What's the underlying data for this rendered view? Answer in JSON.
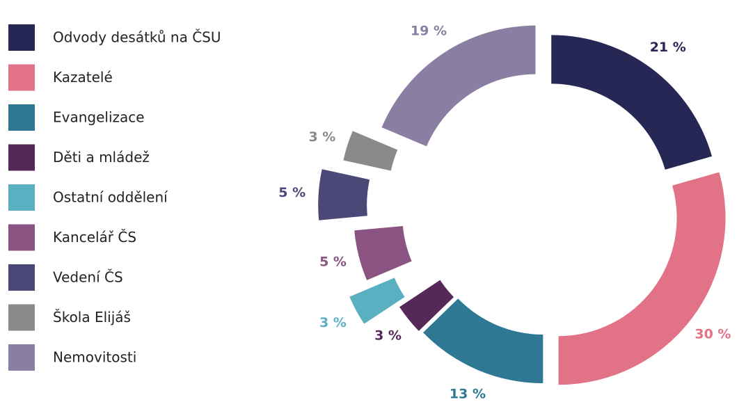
{
  "chart_data": {
    "type": "donut",
    "categories": [
      "Odvody desátků na ČSU",
      "Kazatelé",
      "Evangelizace",
      "Děti a mládež",
      "Ostatní oddělení",
      "Kancelář ČS",
      "Vedení ČS",
      "Škola Elijáš",
      "Nemovitosti"
    ],
    "values": [
      21,
      30,
      13,
      3,
      3,
      5,
      5,
      3,
      19
    ],
    "value_labels": [
      "21 %",
      "30 %",
      "13 %",
      "3 %",
      "3 %",
      "5 %",
      "5 %",
      "3 %",
      "19 %"
    ],
    "colors": [
      "#262755",
      "#e27285",
      "#2e7894",
      "#56285a",
      "#5aafc1",
      "#8a5381",
      "#4a4877",
      "#8a8a8a",
      "#8a7ea3"
    ],
    "legend": "left"
  }
}
